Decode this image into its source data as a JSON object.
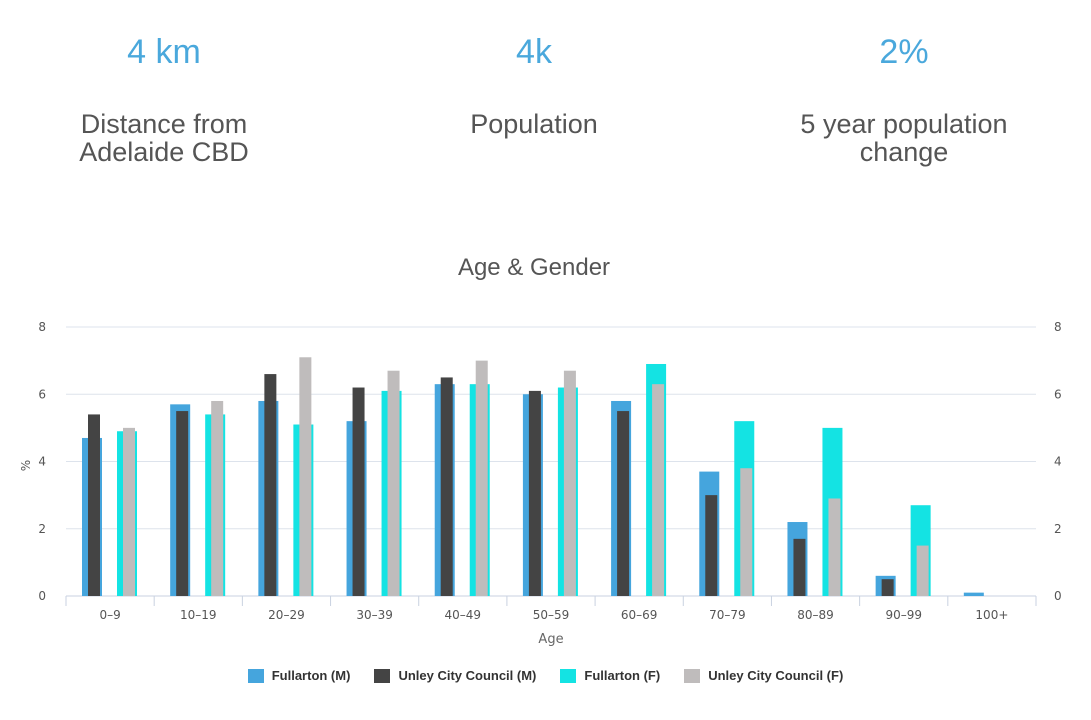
{
  "stats": [
    {
      "value": "4 km",
      "label": "Distance from Adelaide CBD"
    },
    {
      "value": "4k",
      "label": "Population"
    },
    {
      "value": "2%",
      "label": "5 year population change"
    }
  ],
  "colors": {
    "fullarton_m": "#45a5dd",
    "unley_m": "#444444",
    "fullarton_f": "#14e3e3",
    "unley_f": "#bfbcbc"
  },
  "chart_data": {
    "type": "bar",
    "title": "Age & Gender",
    "xlabel": "Age",
    "ylabel": "%",
    "ylim": [
      0,
      8
    ],
    "yticks": [
      0,
      2,
      4,
      6,
      8
    ],
    "grid": true,
    "legend_position": "bottom",
    "categories": [
      "0–9",
      "10–19",
      "20–29",
      "30–39",
      "40–49",
      "50–59",
      "60–69",
      "70–79",
      "80–89",
      "90–99",
      "100+"
    ],
    "series": [
      {
        "name": "Fullarton (M)",
        "values": [
          4.7,
          5.7,
          5.8,
          5.2,
          6.3,
          6.0,
          5.8,
          3.7,
          2.2,
          0.6,
          0.1
        ]
      },
      {
        "name": "Unley City Council (M)",
        "values": [
          5.4,
          5.5,
          6.6,
          6.2,
          6.5,
          6.1,
          5.5,
          3.0,
          1.7,
          0.5,
          0.0
        ]
      },
      {
        "name": "Fullarton (F)",
        "values": [
          4.9,
          5.4,
          5.1,
          6.1,
          6.3,
          6.2,
          6.9,
          5.2,
          5.0,
          2.7,
          0.0
        ]
      },
      {
        "name": "Unley City Council (F)",
        "values": [
          5.0,
          5.8,
          7.1,
          6.7,
          7.0,
          6.7,
          6.3,
          3.8,
          2.9,
          1.5,
          0.0
        ]
      }
    ]
  }
}
